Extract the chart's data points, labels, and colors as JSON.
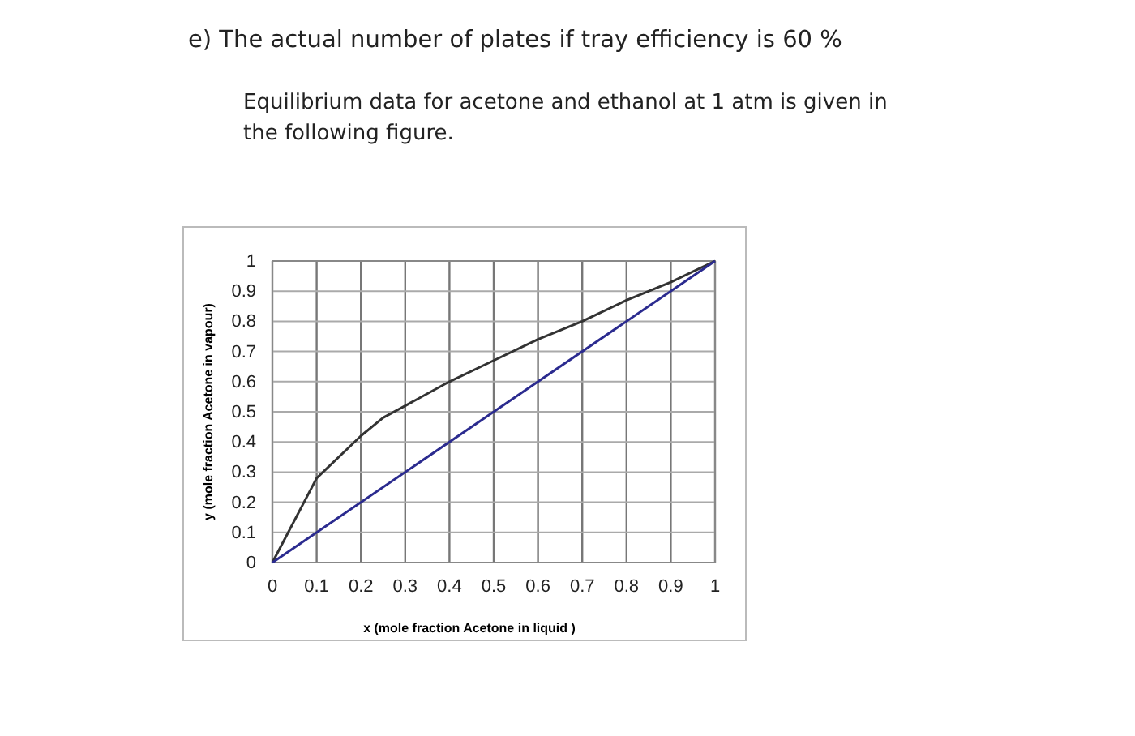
{
  "chart_data": {
    "type": "line",
    "title": "e) The actual number of plates if tray efficiency is 60 %",
    "subtitle": "Equilibrium data for acetone and ethanol at 1 atm is given in the following figure.",
    "xlabel": "x (mole fraction Acetone in liquid )",
    "ylabel": "y (mole fraction Acetone  in vapour)",
    "xlim": [
      0,
      1
    ],
    "ylim": [
      0,
      1
    ],
    "xticks": [
      0,
      0.1,
      0.2,
      0.3,
      0.4,
      0.5,
      0.6,
      0.7,
      0.8,
      0.9,
      1
    ],
    "yticks": [
      0,
      0.1,
      0.2,
      0.3,
      0.4,
      0.5,
      0.6,
      0.7,
      0.8,
      0.9,
      1
    ],
    "grid": true,
    "marker": "none",
    "series": [
      {
        "color": "#333333",
        "x": [
          0,
          0.1,
          0.2,
          0.25,
          0.3,
          0.4,
          0.5,
          0.6,
          0.7,
          0.8,
          0.9,
          1
        ],
        "values": [
          0,
          0.28,
          0.42,
          0.48,
          0.52,
          0.6,
          0.67,
          0.74,
          0.8,
          0.87,
          0.93,
          1
        ]
      },
      {
        "color": "#2b2b8f",
        "x": [
          0,
          1
        ],
        "values": [
          0,
          1
        ]
      }
    ]
  }
}
